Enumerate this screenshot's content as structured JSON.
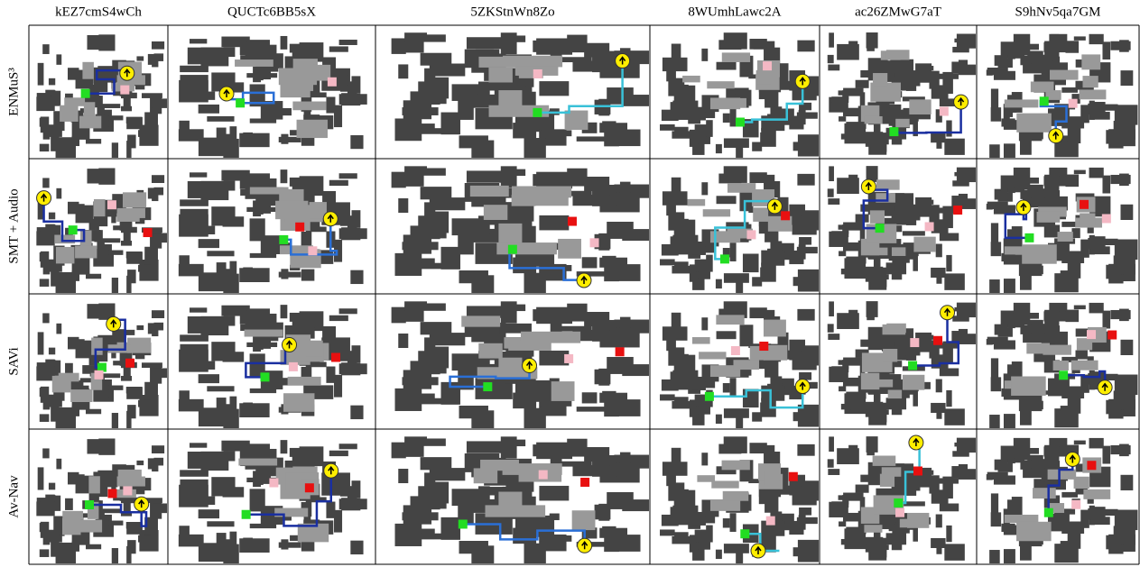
{
  "columns": [
    "kEZ7cmS4wCh",
    "QUCTc6BB5sX",
    "5ZKStnWn8Zo",
    "8WUmhLawc2A",
    "ac26ZMwG7aT",
    "S9hNv5qa7GM"
  ],
  "rows": [
    "ENMuS³",
    "SMT + Audio",
    "SAVi",
    "Av-Nav"
  ]
}
